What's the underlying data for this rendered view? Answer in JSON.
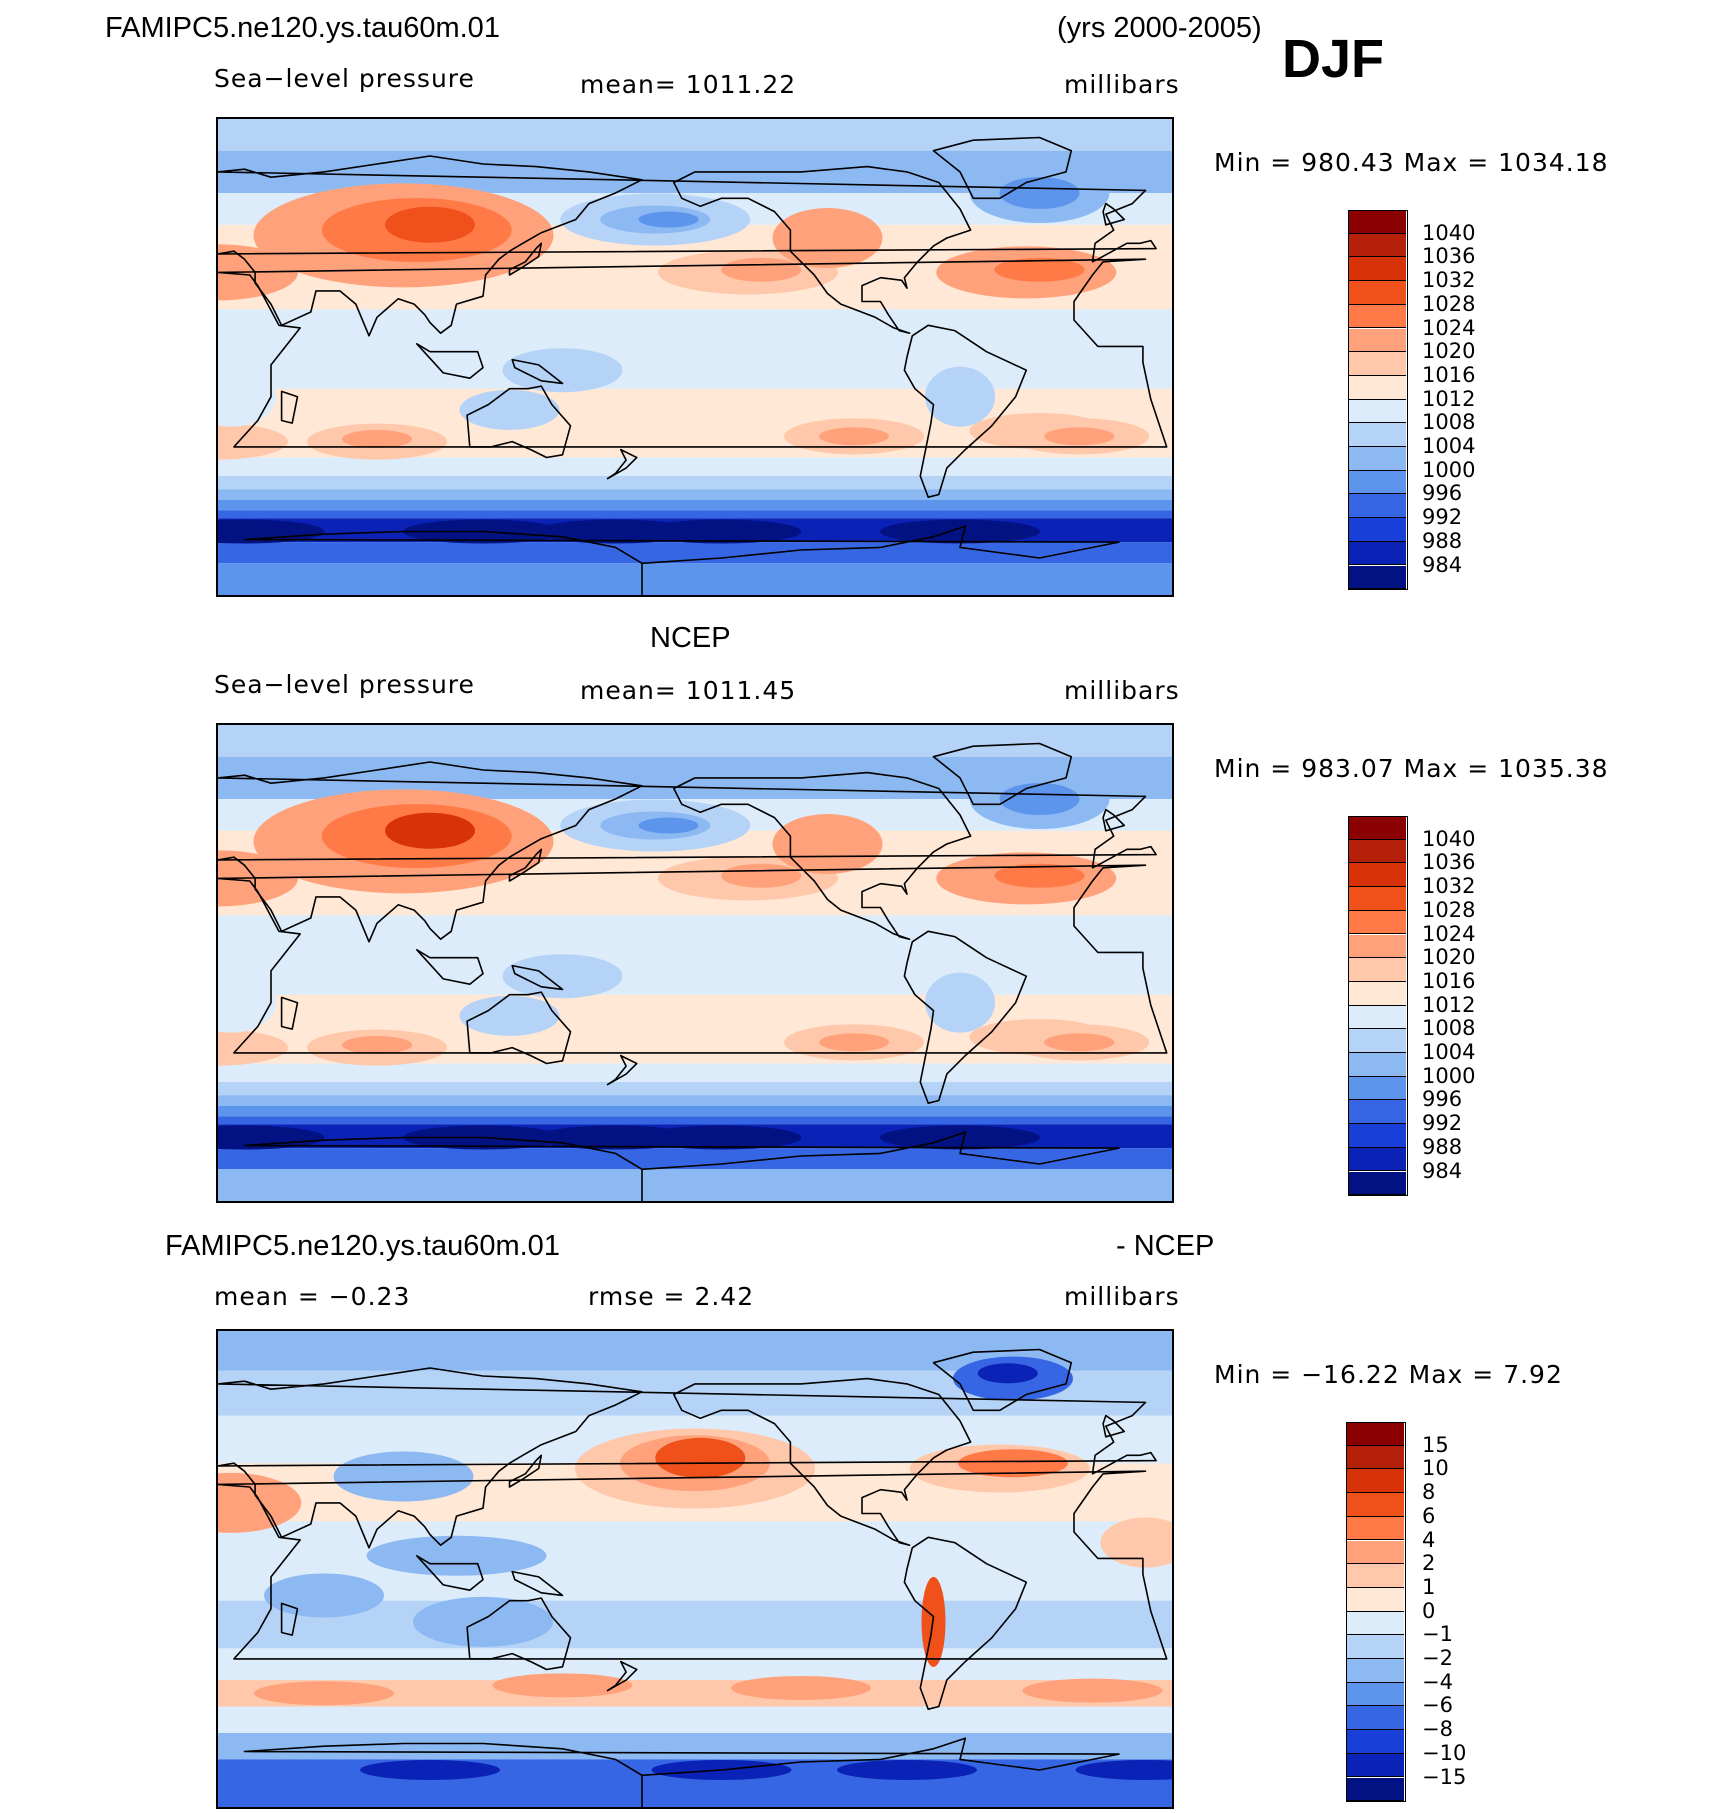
{
  "figure": {
    "run_title": "FAMIPC5.ne120.ys.tau60m.01",
    "years": "(yrs 2000-2005)",
    "season": "DJF"
  },
  "panels": [
    {
      "id": "model",
      "top_title": "",
      "variable": "Sea−level pressure",
      "stat_text": "mean=  1011.22",
      "units": "millibars",
      "minmax": "Min  =  980.43  Max  =  1034.18"
    },
    {
      "id": "obs",
      "top_title": "NCEP",
      "variable": "Sea−level pressure",
      "stat_text": "mean=  1011.45",
      "units": "millibars",
      "minmax": "Min  =  983.07  Max  =  1035.38"
    },
    {
      "id": "diff",
      "top_title_left": "FAMIPC5.ne120.ys.tau60m.01",
      "top_title_right": "- NCEP",
      "mean_text": "mean  =    −0.23",
      "rmse_text": "rmse  =      2.42",
      "units": "millibars",
      "minmax": "Min  =  −16.22  Max  =      7.92"
    }
  ],
  "chart_data": [
    {
      "type": "heatmap",
      "title": "Sea−level pressure (FAMIPC5.ne120.ys.tau60m.01)",
      "units": "millibars",
      "mean": 1011.22,
      "min": 980.43,
      "max": 1034.18,
      "levels": [
        "1040",
        "1036",
        "1032",
        "1028",
        "1024",
        "1020",
        "1016",
        "1012",
        "1008",
        "1004",
        "1000",
        "996",
        "992",
        "988",
        "984"
      ],
      "colors": [
        "#8b0000",
        "#b5200b",
        "#d83209",
        "#f0511a",
        "#ff7a47",
        "#ffa27c",
        "#ffc8ab",
        "#ffe8d6",
        "#dcecfa",
        "#b5d3f7",
        "#8db9f3",
        "#5e95ec",
        "#3666e3",
        "#1840d8",
        "#0a22b5",
        "#031282"
      ]
    },
    {
      "type": "heatmap",
      "title": "Sea−level pressure (NCEP)",
      "units": "millibars",
      "mean": 1011.45,
      "min": 983.07,
      "max": 1035.38,
      "levels": [
        "1040",
        "1036",
        "1032",
        "1028",
        "1024",
        "1020",
        "1016",
        "1012",
        "1008",
        "1004",
        "1000",
        "996",
        "992",
        "988",
        "984"
      ],
      "colors": [
        "#8b0000",
        "#b5200b",
        "#d83209",
        "#f0511a",
        "#ff7a47",
        "#ffa27c",
        "#ffc8ab",
        "#ffe8d6",
        "#dcecfa",
        "#b5d3f7",
        "#8db9f3",
        "#5e95ec",
        "#3666e3",
        "#1840d8",
        "#0a22b5",
        "#031282"
      ]
    },
    {
      "type": "heatmap",
      "title": "FAMIPC5.ne120.ys.tau60m.01 - NCEP",
      "units": "millibars",
      "mean": -0.23,
      "rmse": 2.42,
      "min": -16.22,
      "max": 7.92,
      "levels": [
        "15",
        "10",
        "8",
        "6",
        "4",
        "2",
        "1",
        "0",
        "−1",
        "−2",
        "−4",
        "−6",
        "−8",
        "−10",
        "−15"
      ],
      "colors": [
        "#8b0000",
        "#b5200b",
        "#d83209",
        "#f0511a",
        "#ff7a47",
        "#ffa27c",
        "#ffc8ab",
        "#ffe8d6",
        "#dcecfa",
        "#b5d3f7",
        "#8db9f3",
        "#5e95ec",
        "#3666e3",
        "#1840d8",
        "#0a22b5",
        "#031282"
      ]
    }
  ]
}
